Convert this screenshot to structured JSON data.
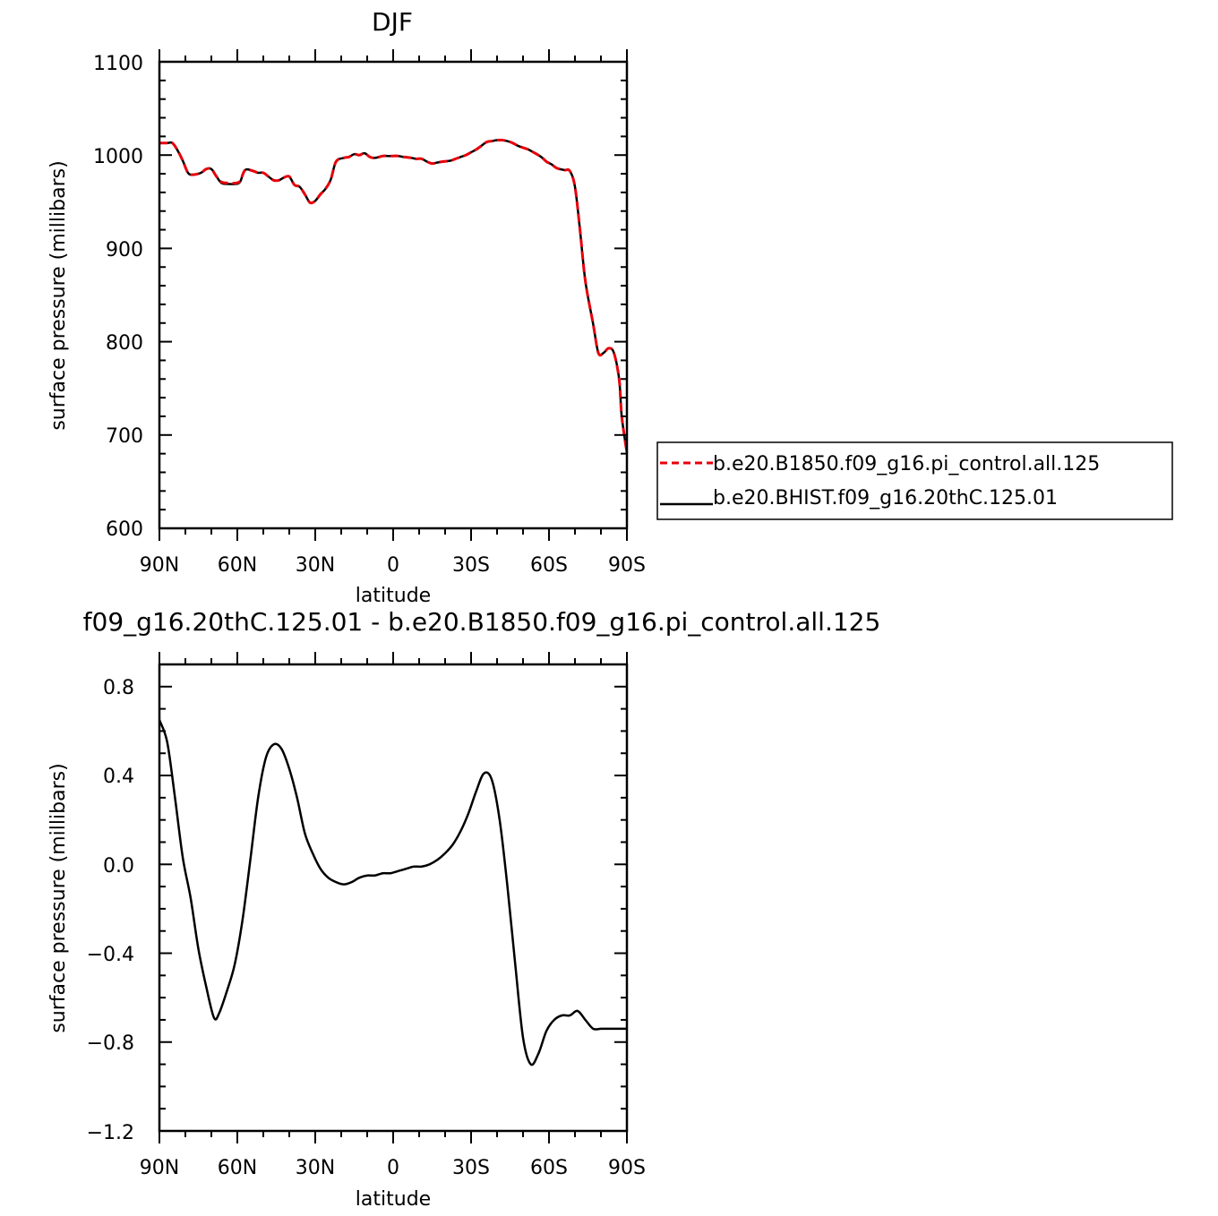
{
  "colors": {
    "control": "#e8000b",
    "hist": "#000000",
    "diff": "#000000",
    "axis": "#000000"
  },
  "chart_data": [
    {
      "type": "line",
      "title": "DJF",
      "xlabel": "latitude",
      "ylabel": "surface pressure (millibars)",
      "x_ticks": [
        "90N",
        "60N",
        "30N",
        "0",
        "30S",
        "60S",
        "90S"
      ],
      "y_ticks": [
        "1100",
        "1000",
        "900",
        "800",
        "700",
        "600"
      ],
      "xlim": [
        90,
        -90
      ],
      "ylim": [
        600,
        1100
      ],
      "legend_position": "right-outside",
      "series": [
        {
          "name": "b.e20.B1850.f09_g16.pi_control.all.125",
          "style": "dashed",
          "color": "#e8000b",
          "lat": [
            90,
            87,
            85,
            83,
            81,
            79,
            77,
            74,
            72,
            70,
            68,
            66,
            63,
            61,
            59,
            57,
            54,
            52,
            50,
            48,
            46,
            44,
            42,
            40,
            38,
            36,
            34,
            32,
            30,
            28,
            26,
            24,
            22,
            19,
            17,
            15,
            13,
            11,
            9,
            7,
            4,
            2,
            0,
            -2,
            -4,
            -7,
            -9,
            -11,
            -13,
            -15,
            -17,
            -19,
            -22,
            -24,
            -26,
            -28,
            -30,
            -32,
            -34,
            -36,
            -38,
            -40,
            -42,
            -44,
            -46,
            -48,
            -50,
            -52,
            -54,
            -57,
            -59,
            -61,
            -63,
            -66,
            -68,
            -70,
            -72,
            -74,
            -77,
            -79,
            -81,
            -83,
            -85,
            -87,
            -88,
            -90
          ],
          "values": [
            1013,
            1013,
            1013,
            1005,
            994,
            981,
            979,
            981,
            985,
            985,
            977,
            971,
            970,
            970,
            972,
            984,
            983,
            981,
            981,
            977,
            973,
            973,
            976,
            977,
            968,
            966,
            958,
            949,
            951,
            958,
            964,
            974,
            993,
            997,
            998,
            1001,
            1000,
            1002,
            998,
            997,
            999,
            999,
            999,
            999,
            998,
            997,
            996,
            996,
            993,
            991,
            992,
            993,
            994,
            996,
            998,
            1000,
            1003,
            1006,
            1010,
            1014,
            1015,
            1016,
            1016,
            1015,
            1013,
            1010,
            1008,
            1006,
            1003,
            998,
            993,
            990,
            986,
            984,
            983,
            966,
            918,
            865,
            819,
            788,
            788,
            793,
            788,
            760,
            720,
            681
          ]
        },
        {
          "name": "b.e20.BHIST.f09_g16.20thC.125.01",
          "style": "solid",
          "color": "#000000",
          "lat": [
            90,
            87,
            85,
            83,
            81,
            79,
            77,
            74,
            72,
            70,
            68,
            66,
            63,
            61,
            59,
            57,
            54,
            52,
            50,
            48,
            46,
            44,
            42,
            40,
            38,
            36,
            34,
            32,
            30,
            28,
            26,
            24,
            22,
            19,
            17,
            15,
            13,
            11,
            9,
            7,
            4,
            2,
            0,
            -2,
            -4,
            -7,
            -9,
            -11,
            -13,
            -15,
            -17,
            -19,
            -22,
            -24,
            -26,
            -28,
            -30,
            -32,
            -34,
            -36,
            -38,
            -40,
            -42,
            -44,
            -46,
            -48,
            -50,
            -52,
            -54,
            -57,
            -59,
            -61,
            -63,
            -66,
            -68,
            -70,
            -72,
            -74,
            -77,
            -79,
            -81,
            -83,
            -85,
            -87,
            -88,
            -90
          ],
          "values": [
            1013,
            1013,
            1013,
            1005,
            994,
            981,
            979,
            981,
            985,
            985,
            977,
            970,
            969,
            969,
            971,
            984,
            983,
            981,
            981,
            977,
            973,
            973,
            976,
            977,
            968,
            966,
            958,
            949,
            951,
            958,
            964,
            974,
            993,
            997,
            998,
            1001,
            1000,
            1002,
            998,
            997,
            999,
            999,
            999,
            999,
            998,
            997,
            996,
            996,
            993,
            991,
            992,
            993,
            994,
            996,
            998,
            1000,
            1003,
            1006,
            1010,
            1014,
            1015,
            1016,
            1016,
            1015,
            1013,
            1010,
            1008,
            1006,
            1003,
            998,
            993,
            990,
            986,
            984,
            983,
            966,
            918,
            865,
            819,
            788,
            788,
            793,
            788,
            760,
            720,
            681
          ]
        }
      ]
    },
    {
      "type": "line",
      "title": "f09_g16.20thC.125.01 - b.e20.B1850.f09_g16.pi_control.all.125",
      "xlabel": "latitude",
      "ylabel": "surface pressure (millibars)",
      "x_ticks": [
        "90N",
        "60N",
        "30N",
        "0",
        "30S",
        "60S",
        "90S"
      ],
      "y_ticks": [
        "0.8",
        "0.4",
        "0.0",
        "−0.4",
        "−0.8",
        "−1.2"
      ],
      "xlim": [
        90,
        -90
      ],
      "ylim": [
        -1.2,
        0.9
      ],
      "series": [
        {
          "style": "solid",
          "color": "#000000",
          "lat": [
            90,
            87,
            84,
            81,
            78,
            75,
            72,
            69,
            67,
            64,
            61,
            58,
            55,
            52,
            49,
            46,
            43,
            40,
            37,
            34,
            31,
            28,
            25,
            22,
            19,
            16,
            13,
            10,
            7,
            4,
            1,
            -2,
            -5,
            -8,
            -11,
            -14,
            -17,
            -20,
            -23,
            -26,
            -29,
            -32,
            -35,
            -38,
            -41,
            -44,
            -47,
            -50,
            -53,
            -56,
            -59,
            -62,
            -65,
            -68,
            -71,
            -74,
            -77,
            -80,
            -83,
            -86,
            -88,
            -90
          ],
          "values": [
            0.65,
            0.55,
            0.3,
            0.03,
            -0.15,
            -0.38,
            -0.55,
            -0.69,
            -0.67,
            -0.57,
            -0.45,
            -0.25,
            0.02,
            0.3,
            0.48,
            0.54,
            0.52,
            0.43,
            0.3,
            0.14,
            0.05,
            -0.02,
            -0.06,
            -0.08,
            -0.09,
            -0.08,
            -0.06,
            -0.05,
            -0.05,
            -0.04,
            -0.04,
            -0.03,
            -0.02,
            -0.01,
            -0.01,
            0.0,
            0.02,
            0.05,
            0.09,
            0.15,
            0.23,
            0.33,
            0.41,
            0.38,
            0.2,
            -0.1,
            -0.45,
            -0.78,
            -0.9,
            -0.85,
            -0.75,
            -0.7,
            -0.68,
            -0.68,
            -0.66,
            -0.7,
            -0.74,
            -0.74,
            -0.74,
            -0.74,
            -0.74,
            -0.74
          ]
        }
      ]
    }
  ]
}
